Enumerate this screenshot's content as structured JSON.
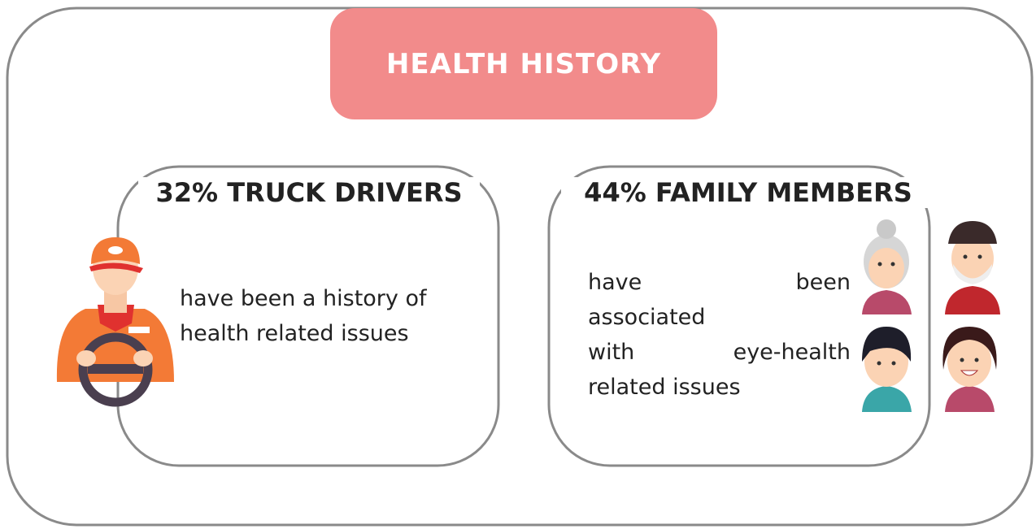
{
  "header": {
    "title": "HEALTH HISTORY"
  },
  "cards": [
    {
      "title": "32% TRUCK DRIVERS",
      "lines": [
        "have been a history of",
        "health related issues"
      ]
    },
    {
      "title": "44% FAMILY MEMBERS",
      "lines": [
        "have been",
        "associated",
        "with eye-health",
        "related issues"
      ]
    }
  ]
}
